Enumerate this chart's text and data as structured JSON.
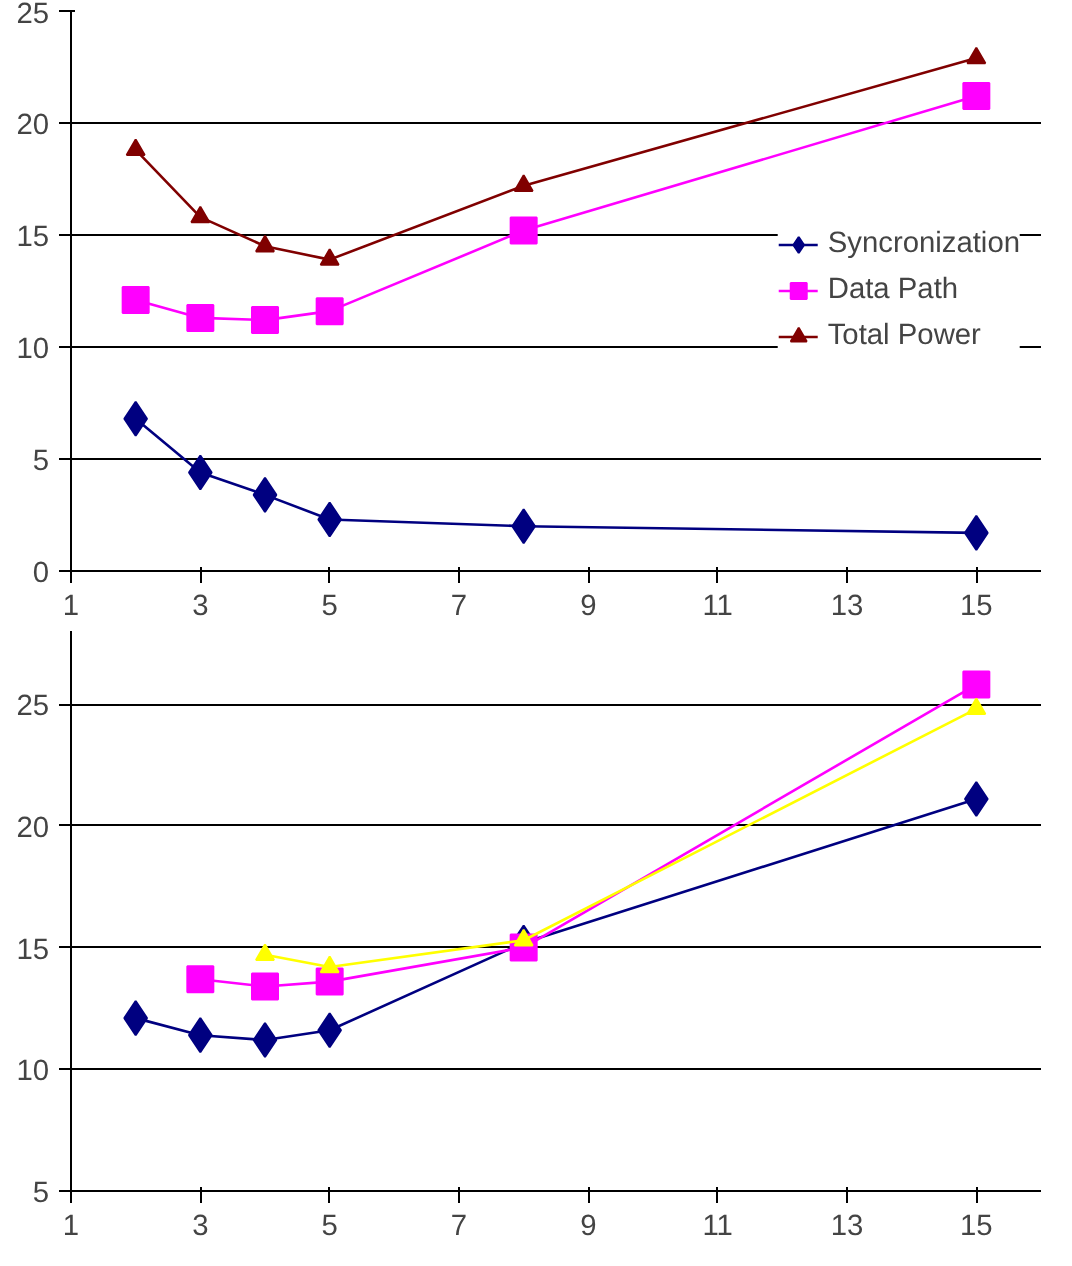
{
  "chart_data": [
    {
      "type": "line",
      "x": [
        2,
        3,
        4,
        5,
        8,
        15
      ],
      "xlim": [
        1,
        16
      ],
      "xticks": [
        1,
        3,
        5,
        7,
        9,
        11,
        13,
        15
      ],
      "ylim": [
        0,
        25
      ],
      "yticks": [
        0,
        5,
        10,
        15,
        20,
        25
      ],
      "grid": "y",
      "legend": "right",
      "series": [
        {
          "name": "Syncronization",
          "color": "#000080",
          "marker": "diamond",
          "values": [
            6.8,
            4.4,
            3.4,
            2.3,
            2.0,
            1.7
          ]
        },
        {
          "name": "Data Path",
          "color": "#ff00ff",
          "marker": "square",
          "values": [
            12.1,
            11.3,
            11.2,
            11.6,
            15.2,
            21.2
          ]
        },
        {
          "name": "Total Power",
          "color": "#800000",
          "marker": "triangle",
          "values": [
            18.8,
            15.8,
            14.5,
            13.9,
            17.2,
            22.9
          ]
        }
      ]
    },
    {
      "type": "line",
      "xlim": [
        1,
        16
      ],
      "xticks": [
        1,
        3,
        5,
        7,
        9,
        11,
        13,
        15
      ],
      "ylim": [
        5,
        28
      ],
      "yticks": [
        5,
        10,
        15,
        20,
        25
      ],
      "grid": "y",
      "series": [
        {
          "color": "#000080",
          "marker": "diamond",
          "x": [
            2,
            3,
            4,
            5,
            8,
            15
          ],
          "values": [
            12.1,
            11.4,
            11.2,
            11.6,
            15.2,
            21.1
          ]
        },
        {
          "color": "#ff00ff",
          "marker": "square",
          "x": [
            3,
            4,
            5,
            8,
            15
          ],
          "values": [
            13.7,
            13.4,
            13.6,
            15.0,
            25.8
          ]
        },
        {
          "color": "#ffff00",
          "marker": "triangle",
          "x": [
            4,
            5,
            8,
            15
          ],
          "values": [
            14.7,
            14.2,
            15.3,
            24.8
          ]
        }
      ]
    }
  ]
}
